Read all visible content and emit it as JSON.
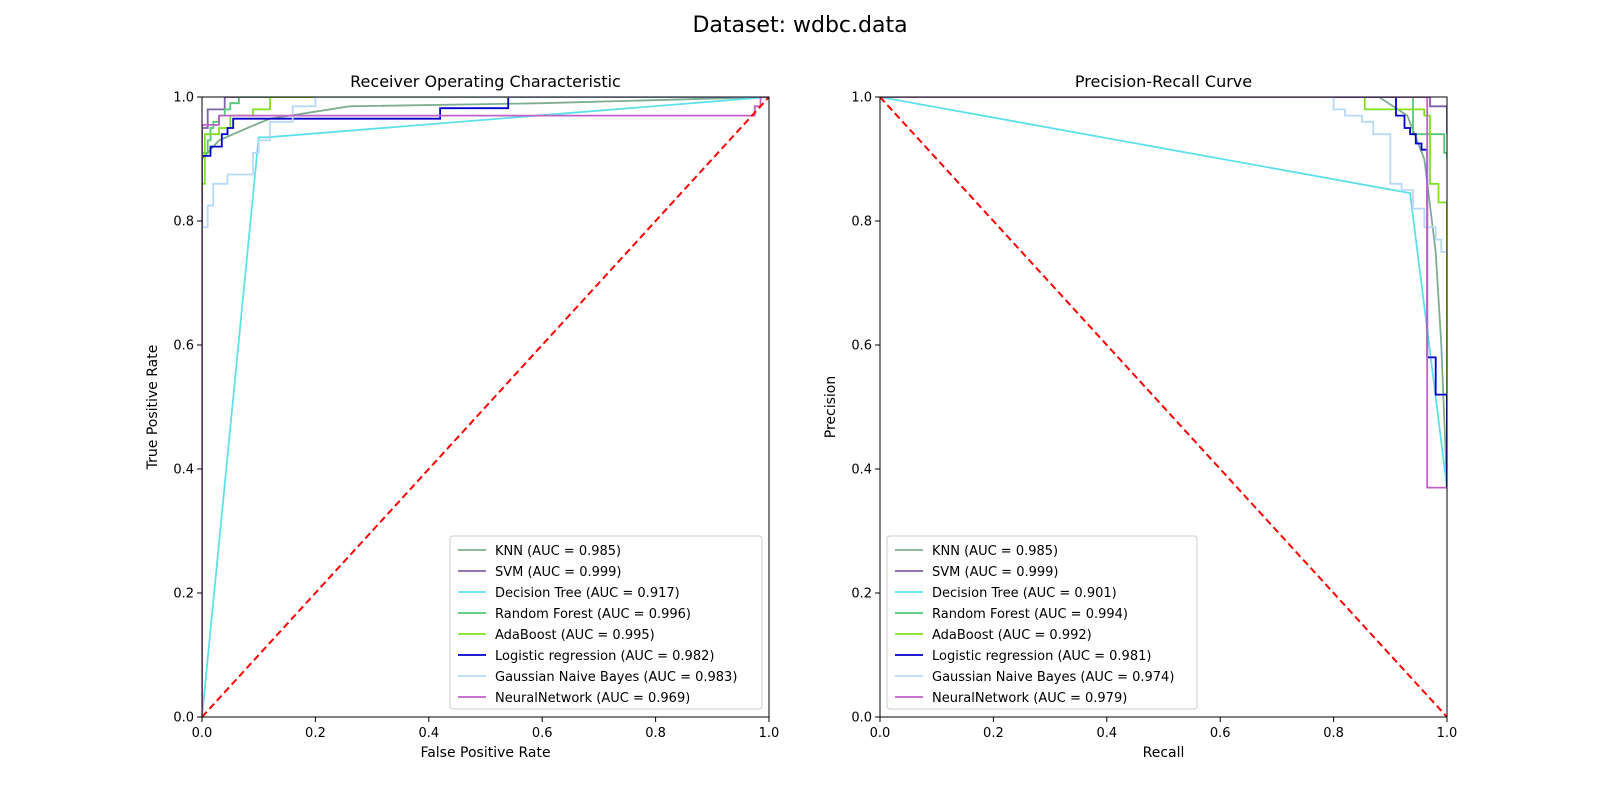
{
  "figure": {
    "suptitle": "Dataset: wdbc.data"
  },
  "chart_data": [
    {
      "type": "line",
      "title": "Receiver Operating Characteristic",
      "xlabel": "False Positive Rate",
      "ylabel": "True Positive Rate",
      "xlim": [
        0,
        1
      ],
      "ylim": [
        0,
        1
      ],
      "xticks": [
        "0.0",
        "0.2",
        "0.4",
        "0.6",
        "0.8",
        "1.0"
      ],
      "yticks": [
        "0.0",
        "0.2",
        "0.4",
        "0.6",
        "0.8",
        "1.0"
      ],
      "grid": false,
      "legend_position": "lower-right",
      "reference_line": {
        "color": "#ff0000",
        "style": "dashed",
        "points": [
          [
            0,
            0
          ],
          [
            1,
            1
          ]
        ]
      },
      "series": [
        {
          "name": "KNN (AUC = 0.985)",
          "color": "#7fae8f",
          "step": false,
          "points": [
            [
              0,
              0
            ],
            [
              0,
              0.9
            ],
            [
              0.03,
              0.93
            ],
            [
              0.08,
              0.95
            ],
            [
              0.12,
              0.965
            ],
            [
              0.26,
              0.985
            ],
            [
              0.6,
              0.99
            ],
            [
              1,
              1
            ]
          ]
        },
        {
          "name": "SVM (AUC = 0.999)",
          "color": "#8060a8",
          "step": true,
          "points": [
            [
              0,
              0
            ],
            [
              0,
              0.95
            ],
            [
              0.01,
              0.98
            ],
            [
              0.04,
              1
            ],
            [
              1,
              1
            ]
          ]
        },
        {
          "name": "Decision Tree (AUC = 0.917)",
          "color": "#5ee0e8",
          "step": false,
          "points": [
            [
              0,
              0
            ],
            [
              0.1,
              0.935
            ],
            [
              0.115,
              0.935
            ],
            [
              1,
              1
            ]
          ]
        },
        {
          "name": "Random Forest (AUC = 0.996)",
          "color": "#50c878",
          "step": true,
          "points": [
            [
              0,
              0
            ],
            [
              0,
              0.91
            ],
            [
              0.01,
              0.93
            ],
            [
              0.015,
              0.95
            ],
            [
              0.02,
              0.96
            ],
            [
              0.03,
              0.97
            ],
            [
              0.04,
              0.98
            ],
            [
              0.05,
              0.99
            ],
            [
              0.065,
              1
            ],
            [
              1,
              1
            ]
          ]
        },
        {
          "name": "AdaBoost (AUC = 0.995)",
          "color": "#80e020",
          "step": true,
          "points": [
            [
              0,
              0
            ],
            [
              0,
              0.86
            ],
            [
              0.005,
              0.94
            ],
            [
              0.03,
              0.95
            ],
            [
              0.05,
              0.97
            ],
            [
              0.09,
              0.98
            ],
            [
              0.12,
              1
            ],
            [
              0.195,
              1
            ],
            [
              1,
              1
            ]
          ]
        },
        {
          "name": "Logistic regression (AUC = 0.982)",
          "color": "#0000cc",
          "step": true,
          "points": [
            [
              0,
              0
            ],
            [
              0,
              0.905
            ],
            [
              0.015,
              0.92
            ],
            [
              0.035,
              0.94
            ],
            [
              0.045,
              0.95
            ],
            [
              0.055,
              0.965
            ],
            [
              0.42,
              0.97
            ],
            [
              0.42,
              0.982
            ],
            [
              0.54,
              0.99
            ],
            [
              0.54,
              1
            ],
            [
              1,
              1
            ]
          ]
        },
        {
          "name": "Gaussian Naive Bayes (AUC = 0.983)",
          "color": "#b8d8f8",
          "step": true,
          "points": [
            [
              0,
              0
            ],
            [
              0,
              0.79
            ],
            [
              0.01,
              0.825
            ],
            [
              0.02,
              0.86
            ],
            [
              0.045,
              0.875
            ],
            [
              0.09,
              0.91
            ],
            [
              0.1,
              0.93
            ],
            [
              0.12,
              0.96
            ],
            [
              0.16,
              0.985
            ],
            [
              0.2,
              1
            ],
            [
              1,
              1
            ]
          ]
        },
        {
          "name": "NeuralNetwork (AUC = 0.969)",
          "color": "#c060c8",
          "step": true,
          "points": [
            [
              0,
              0
            ],
            [
              0,
              0.955
            ],
            [
              0.03,
              0.97
            ],
            [
              0.97,
              0.97
            ],
            [
              0.975,
              0.985
            ],
            [
              0.985,
              1
            ],
            [
              1,
              1
            ]
          ]
        }
      ]
    },
    {
      "type": "line",
      "title": "Precision-Recall Curve",
      "xlabel": "Recall",
      "ylabel": "Precision",
      "xlim": [
        0,
        1
      ],
      "ylim": [
        0,
        1
      ],
      "xticks": [
        "0.0",
        "0.2",
        "0.4",
        "0.6",
        "0.8",
        "1.0"
      ],
      "yticks": [
        "0.0",
        "0.2",
        "0.4",
        "0.6",
        "0.8",
        "1.0"
      ],
      "grid": false,
      "legend_position": "lower-left",
      "reference_line": {
        "color": "#ff0000",
        "style": "dashed",
        "points": [
          [
            0,
            1
          ],
          [
            1,
            0
          ]
        ]
      },
      "series": [
        {
          "name": "KNN (AUC = 0.985)",
          "color": "#7fae8f",
          "step": false,
          "points": [
            [
              0,
              1
            ],
            [
              0.88,
              1
            ],
            [
              0.93,
              0.97
            ],
            [
              0.96,
              0.9
            ],
            [
              0.98,
              0.75
            ],
            [
              0.99,
              0.6
            ],
            [
              1,
              0.37
            ]
          ]
        },
        {
          "name": "SVM (AUC = 0.999)",
          "color": "#8060a8",
          "step": true,
          "points": [
            [
              0,
              1
            ],
            [
              0.97,
              1
            ],
            [
              0.97,
              0.985
            ],
            [
              1,
              0.94
            ]
          ]
        },
        {
          "name": "Decision Tree (AUC = 0.901)",
          "color": "#5ee0e8",
          "step": false,
          "points": [
            [
              0,
              1
            ],
            [
              0.935,
              0.845
            ],
            [
              1,
              0.37
            ]
          ]
        },
        {
          "name": "Random Forest (AUC = 0.994)",
          "color": "#50c878",
          "step": true,
          "points": [
            [
              0,
              1
            ],
            [
              0.94,
              1
            ],
            [
              0.94,
              0.94
            ],
            [
              0.995,
              0.94
            ],
            [
              0.995,
              0.91
            ],
            [
              1,
              0.9
            ]
          ]
        },
        {
          "name": "AdaBoost (AUC = 0.992)",
          "color": "#80e020",
          "step": true,
          "points": [
            [
              0,
              1
            ],
            [
              0.855,
              1
            ],
            [
              0.855,
              0.98
            ],
            [
              0.94,
              0.98
            ],
            [
              0.96,
              0.97
            ],
            [
              0.97,
              0.86
            ],
            [
              0.985,
              0.83
            ],
            [
              1,
              0.83
            ],
            [
              1,
              0.37
            ]
          ]
        },
        {
          "name": "Logistic regression (AUC = 0.981)",
          "color": "#0000cc",
          "step": true,
          "points": [
            [
              0,
              1
            ],
            [
              0.905,
              1
            ],
            [
              0.91,
              0.97
            ],
            [
              0.925,
              0.95
            ],
            [
              0.935,
              0.94
            ],
            [
              0.945,
              0.925
            ],
            [
              0.955,
              0.915
            ],
            [
              0.965,
              0.58
            ],
            [
              0.975,
              0.58
            ],
            [
              0.98,
              0.52
            ],
            [
              0.99,
              0.52
            ],
            [
              1,
              0.37
            ]
          ]
        },
        {
          "name": "Gaussian Naive Bayes (AUC = 0.974)",
          "color": "#b8d8f8",
          "step": true,
          "points": [
            [
              0,
              1
            ],
            [
              0.79,
              1
            ],
            [
              0.8,
              0.98
            ],
            [
              0.82,
              0.97
            ],
            [
              0.85,
              0.96
            ],
            [
              0.87,
              0.94
            ],
            [
              0.9,
              0.86
            ],
            [
              0.92,
              0.85
            ],
            [
              0.94,
              0.82
            ],
            [
              0.96,
              0.79
            ],
            [
              0.98,
              0.77
            ],
            [
              0.99,
              0.75
            ],
            [
              1,
              0.75
            ]
          ]
        },
        {
          "name": "NeuralNetwork (AUC = 0.979)",
          "color": "#c060c8",
          "step": true,
          "points": [
            [
              0,
              1
            ],
            [
              0.965,
              1
            ],
            [
              0.965,
              0.37
            ],
            [
              1,
              0.372
            ]
          ]
        }
      ]
    }
  ]
}
